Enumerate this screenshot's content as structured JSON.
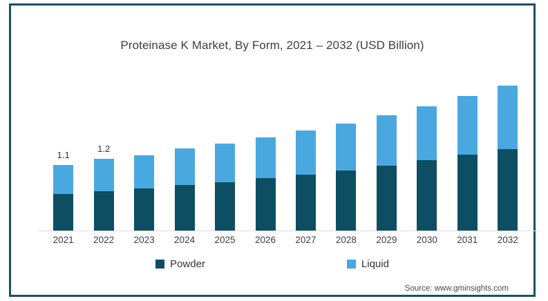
{
  "chart": {
    "source": "Source: www.gminsights.com"
  },
  "colors": {
    "powder": "#0d4e63",
    "liquid": "#4aa8e0",
    "frame_border": "#1b4f63",
    "axis_line": "#dcdcdc"
  },
  "chart_data": {
    "type": "bar",
    "stacked": true,
    "title": "Proteinase K Market, By Form, 2021 – 2032 (USD Billion)",
    "categories": [
      "2021",
      "2022",
      "2023",
      "2024",
      "2025",
      "2026",
      "2027",
      "2028",
      "2029",
      "2030",
      "2031",
      "2032"
    ],
    "series": [
      {
        "name": "Powder",
        "color": "#0d4e63",
        "values": [
          0.61,
          0.66,
          0.71,
          0.76,
          0.81,
          0.88,
          0.94,
          1.01,
          1.09,
          1.18,
          1.27,
          1.37
        ]
      },
      {
        "name": "Liquid",
        "color": "#4aa8e0",
        "values": [
          0.49,
          0.54,
          0.56,
          0.61,
          0.65,
          0.68,
          0.74,
          0.79,
          0.84,
          0.9,
          0.98,
          1.07
        ]
      }
    ],
    "totals": [
      1.1,
      1.2,
      1.27,
      1.37,
      1.46,
      1.56,
      1.68,
      1.8,
      1.93,
      2.08,
      2.25,
      2.44
    ],
    "visible_total_labels": [
      "1.1",
      "1.2",
      "",
      "",
      "",
      "",
      "",
      "",
      "",
      "",
      "",
      ""
    ],
    "xlabel": "",
    "ylabel": "",
    "unit": "USD Billion",
    "ylim": [
      0,
      2.6
    ],
    "grid": false,
    "legend_position": "bottom"
  }
}
